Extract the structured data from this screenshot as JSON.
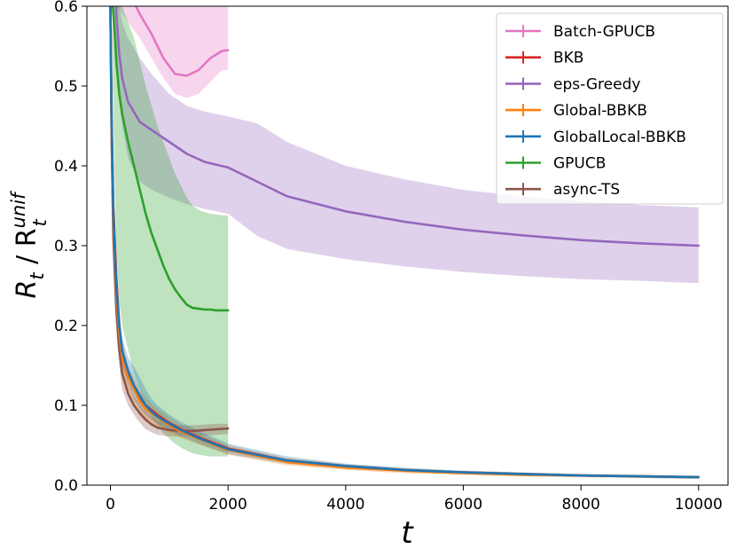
{
  "chart_data": {
    "type": "line",
    "xlabel": "t",
    "ylabel_main": "R",
    "ylabel_sub": "t",
    "ylabel_sep": " / R",
    "ylabel_sup": "unif",
    "ylabel_sub2": "t",
    "xlim": [
      -400,
      10500
    ],
    "ylim": [
      0,
      0.6
    ],
    "xticks": [
      0,
      2000,
      4000,
      6000,
      8000,
      10000
    ],
    "xtick_labels": [
      "0",
      "2000",
      "4000",
      "6000",
      "8000",
      "10000"
    ],
    "yticks": [
      0,
      0.1,
      0.2,
      0.3,
      0.4,
      0.5,
      0.6
    ],
    "ytick_labels": [
      "0.0",
      "0.1",
      "0.2",
      "0.3",
      "0.4",
      "0.5",
      "0.6"
    ],
    "grid": false,
    "legend_position": "top-right",
    "series": [
      {
        "name": "Batch-GPUCB",
        "color": "#e377c2",
        "x": [
          100,
          300,
          500,
          700,
          900,
          1100,
          1300,
          1500,
          1700,
          1900,
          2000
        ],
        "y": [
          0.66,
          0.62,
          0.59,
          0.565,
          0.535,
          0.515,
          0.513,
          0.52,
          0.535,
          0.544,
          0.545
        ],
        "band_upper": [
          0.6,
          0.6,
          0.6,
          0.6,
          0.6,
          0.6,
          0.6,
          0.6,
          0.6,
          0.6,
          0.6
        ],
        "band_lower": [
          0.6,
          0.58,
          0.56,
          0.535,
          0.51,
          0.49,
          0.485,
          0.49,
          0.505,
          0.52,
          0.52
        ]
      },
      {
        "name": "BKB",
        "color": "#d62728",
        "x": [
          0,
          20,
          50,
          100,
          150,
          200,
          300,
          400,
          500,
          600,
          700,
          800,
          1000,
          1200,
          1500,
          2000,
          3000,
          4000,
          5000,
          6000,
          7000,
          8000,
          9000,
          10000
        ],
        "y": [
          0.6,
          0.46,
          0.35,
          0.26,
          0.2,
          0.165,
          0.14,
          0.122,
          0.11,
          0.1,
          0.094,
          0.088,
          0.078,
          0.07,
          0.06,
          0.046,
          0.031,
          0.024,
          0.019,
          0.016,
          0.014,
          0.012,
          0.011,
          0.01
        ],
        "band_upper": [],
        "band_lower": []
      },
      {
        "name": "eps-Greedy",
        "color": "#9467bd",
        "x": [
          60,
          100,
          150,
          200,
          300,
          500,
          700,
          1000,
          1300,
          1600,
          2000,
          2500,
          3000,
          4000,
          5000,
          6000,
          7000,
          8000,
          9000,
          10000
        ],
        "y": [
          0.66,
          0.59,
          0.54,
          0.51,
          0.48,
          0.455,
          0.445,
          0.43,
          0.415,
          0.405,
          0.398,
          0.38,
          0.362,
          0.343,
          0.33,
          0.32,
          0.313,
          0.307,
          0.303,
          0.3
        ],
        "band_upper": [
          0.66,
          0.64,
          0.6,
          0.58,
          0.56,
          0.535,
          0.515,
          0.49,
          0.475,
          0.468,
          0.462,
          0.453,
          0.43,
          0.4,
          0.383,
          0.37,
          0.362,
          0.356,
          0.351,
          0.348
        ],
        "band_lower": [
          0.6,
          0.52,
          0.48,
          0.45,
          0.41,
          0.38,
          0.37,
          0.36,
          0.352,
          0.346,
          0.34,
          0.312,
          0.296,
          0.283,
          0.274,
          0.267,
          0.262,
          0.258,
          0.256,
          0.253
        ]
      },
      {
        "name": "Global-BBKB",
        "color": "#ff7f0e",
        "x": [
          0,
          20,
          50,
          100,
          150,
          200,
          300,
          400,
          500,
          600,
          700,
          800,
          1000,
          1200,
          1500,
          2000,
          3000,
          4000,
          5000,
          6000,
          7000,
          8000,
          9000,
          10000
        ],
        "y": [
          0.6,
          0.44,
          0.33,
          0.24,
          0.19,
          0.16,
          0.135,
          0.12,
          0.105,
          0.095,
          0.09,
          0.085,
          0.075,
          0.067,
          0.058,
          0.044,
          0.029,
          0.022,
          0.018,
          0.015,
          0.013,
          0.012,
          0.011,
          0.01
        ],
        "band_upper": [
          0.6,
          0.48,
          0.37,
          0.27,
          0.21,
          0.18,
          0.15,
          0.135,
          0.12,
          0.11,
          0.102,
          0.096,
          0.085,
          0.076,
          0.066,
          0.05,
          0.034,
          0.026,
          0.021,
          0.018,
          0.016,
          0.014,
          0.013,
          0.012
        ],
        "band_lower": [
          0.6,
          0.4,
          0.29,
          0.21,
          0.17,
          0.14,
          0.12,
          0.105,
          0.092,
          0.083,
          0.078,
          0.074,
          0.066,
          0.059,
          0.051,
          0.038,
          0.025,
          0.019,
          0.015,
          0.013,
          0.011,
          0.01,
          0.009,
          0.008
        ]
      },
      {
        "name": "GlobalLocal-BBKB",
        "color": "#1f77b4",
        "x": [
          0,
          20,
          50,
          100,
          150,
          200,
          300,
          400,
          500,
          600,
          700,
          800,
          1000,
          1200,
          1500,
          2000,
          3000,
          4000,
          5000,
          6000,
          7000,
          8000,
          9000,
          10000
        ],
        "y": [
          0.6,
          0.45,
          0.34,
          0.25,
          0.2,
          0.168,
          0.143,
          0.125,
          0.112,
          0.1,
          0.092,
          0.086,
          0.077,
          0.069,
          0.059,
          0.045,
          0.031,
          0.024,
          0.019,
          0.016,
          0.014,
          0.012,
          0.011,
          0.01
        ],
        "band_upper": [
          0.6,
          0.49,
          0.38,
          0.28,
          0.22,
          0.185,
          0.16,
          0.148,
          0.135,
          0.12,
          0.108,
          0.1,
          0.088,
          0.079,
          0.068,
          0.052,
          0.036,
          0.027,
          0.022,
          0.018,
          0.016,
          0.014,
          0.013,
          0.012
        ],
        "band_lower": [
          0.6,
          0.41,
          0.3,
          0.22,
          0.18,
          0.15,
          0.127,
          0.108,
          0.096,
          0.088,
          0.082,
          0.077,
          0.069,
          0.061,
          0.052,
          0.039,
          0.027,
          0.021,
          0.017,
          0.014,
          0.012,
          0.011,
          0.009,
          0.008
        ]
      },
      {
        "name": "GPUCB",
        "color": "#2ca02c",
        "x": [
          40,
          80,
          100,
          150,
          200,
          300,
          400,
          500,
          600,
          700,
          800,
          900,
          1000,
          1100,
          1200,
          1300,
          1400,
          1500,
          1600,
          1700,
          1800,
          1900,
          2000
        ],
        "y": [
          0.6,
          0.56,
          0.53,
          0.49,
          0.465,
          0.43,
          0.4,
          0.37,
          0.34,
          0.315,
          0.295,
          0.275,
          0.258,
          0.245,
          0.235,
          0.226,
          0.222,
          0.221,
          0.22,
          0.22,
          0.219,
          0.219,
          0.219
        ],
        "band_upper": [
          0.62,
          0.62,
          0.62,
          0.62,
          0.6,
          0.58,
          0.56,
          0.53,
          0.5,
          0.475,
          0.45,
          0.43,
          0.41,
          0.39,
          0.375,
          0.36,
          0.35,
          0.345,
          0.342,
          0.34,
          0.339,
          0.338,
          0.338
        ],
        "band_lower": [
          0.5,
          0.36,
          0.3,
          0.23,
          0.2,
          0.17,
          0.14,
          0.12,
          0.1,
          0.085,
          0.075,
          0.065,
          0.058,
          0.052,
          0.047,
          0.043,
          0.04,
          0.038,
          0.037,
          0.036,
          0.036,
          0.036,
          0.036
        ]
      },
      {
        "name": "async-TS",
        "color": "#8c564b",
        "x": [
          0,
          20,
          50,
          100,
          150,
          200,
          300,
          400,
          500,
          600,
          700,
          800,
          1000,
          1200,
          1400,
          1600,
          1800,
          2000
        ],
        "y": [
          0.6,
          0.43,
          0.31,
          0.22,
          0.17,
          0.14,
          0.115,
          0.1,
          0.09,
          0.082,
          0.076,
          0.072,
          0.069,
          0.068,
          0.068,
          0.069,
          0.07,
          0.071
        ],
        "band_upper": [
          0.6,
          0.47,
          0.35,
          0.25,
          0.19,
          0.16,
          0.13,
          0.112,
          0.1,
          0.092,
          0.086,
          0.081,
          0.077,
          0.075,
          0.075,
          0.076,
          0.077,
          0.077
        ],
        "band_lower": [
          0.6,
          0.39,
          0.27,
          0.19,
          0.15,
          0.12,
          0.1,
          0.088,
          0.078,
          0.07,
          0.066,
          0.063,
          0.061,
          0.061,
          0.061,
          0.062,
          0.063,
          0.064
        ]
      }
    ]
  }
}
